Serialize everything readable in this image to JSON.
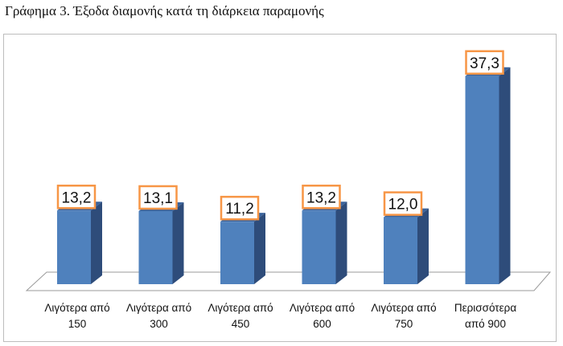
{
  "title": "Γράφημα 3. Έξοδα διαμονής κατά τη διάρκεια παραμονής",
  "chart_data": {
    "type": "bar",
    "style": "3d-column",
    "categories": [
      [
        "Λιγότερα από",
        "150"
      ],
      [
        "Λιγότερα από",
        "300"
      ],
      [
        "Λιγότερα από",
        "450"
      ],
      [
        "Λιγότερα από",
        "600"
      ],
      [
        "Λιγότερα από",
        "750"
      ],
      [
        "Περισσότερα",
        "από 900"
      ]
    ],
    "values": [
      13.2,
      13.1,
      11.2,
      13.2,
      12.0,
      37.3
    ],
    "data_labels": [
      "13,2",
      "13,1",
      "11,2",
      "13,2",
      "12,0",
      "37,3"
    ],
    "xlabel": "",
    "ylabel": "",
    "ylim": [
      0,
      40
    ],
    "grid": false,
    "legend": "none",
    "colors": {
      "bar_front": "#4f81bd",
      "bar_side": "#2e4c7a",
      "bar_top": "#3a639c",
      "label_border": "#f79646",
      "floor": "#ffffff",
      "floor_border": "#9a9a9a"
    }
  }
}
